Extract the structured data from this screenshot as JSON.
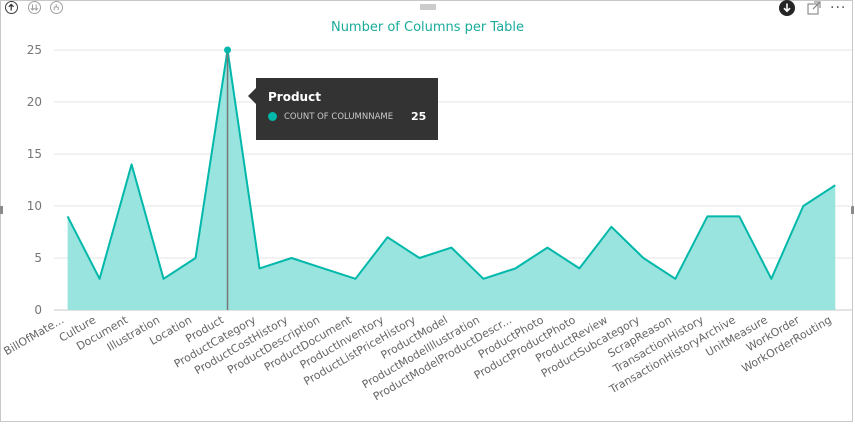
{
  "toolbar": {
    "drill_up_icon": "arrow-up-circle-icon",
    "drill_down_all_icon": "double-arrow-down-circle-icon",
    "expand_level_icon": "fork-down-circle-icon",
    "drill_mode_icon": "arrow-down-filled-circle-icon",
    "focus_mode_icon": "expand-icon",
    "more_options_label": "···"
  },
  "colors": {
    "series": "#01b8aa",
    "area": "#93e3dc",
    "title": "#1aab9b",
    "grid": "#e6e6e6",
    "tooltip_bg": "#333333"
  },
  "tooltip": {
    "title": "Product",
    "series_label": "COUNT OF COLUMNNAME",
    "value": "25"
  },
  "chart_data": {
    "type": "area",
    "title": "Number of Columns per Table",
    "xlabel": "",
    "ylabel": "",
    "ylim": [
      0,
      25
    ],
    "yticks": [
      0,
      5,
      10,
      15,
      20,
      25
    ],
    "grid": true,
    "categories": [
      "BillOfMate...",
      "Culture",
      "Document",
      "Illustration",
      "Location",
      "Product",
      "ProductCategory",
      "ProductCostHistory",
      "ProductDescription",
      "ProductDocument",
      "ProductInventory",
      "ProductListPriceHistory",
      "ProductModel",
      "ProductModelIllustration",
      "ProductModelProductDescr...",
      "ProductPhoto",
      "ProductProductPhoto",
      "ProductReview",
      "ProductSubcategory",
      "ScrapReason",
      "TransactionHistory",
      "TransactionHistoryArchive",
      "UnitMeasure",
      "WorkOrder",
      "WorkOrderRouting"
    ],
    "series": [
      {
        "name": "COUNT OF COLUMNNAME",
        "values": [
          9,
          3,
          14,
          3,
          5,
          25,
          4,
          5,
          4,
          3,
          7,
          5,
          6,
          3,
          4,
          6,
          4,
          8,
          5,
          3,
          9,
          9,
          3,
          10,
          12
        ]
      }
    ],
    "highlighted_category": "Product"
  }
}
